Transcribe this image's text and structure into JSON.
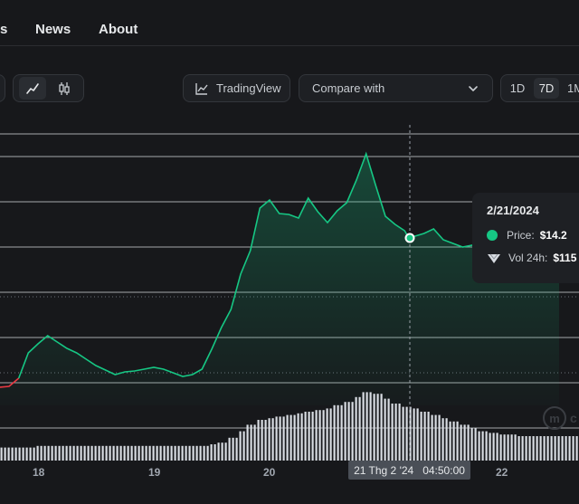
{
  "nav": {
    "items": [
      {
        "label": "s"
      },
      {
        "label": "News"
      },
      {
        "label": "About"
      }
    ]
  },
  "toolbar": {
    "tradingview_label": "TradingView",
    "compare_placeholder": "Compare with",
    "ranges": [
      "1D",
      "7D",
      "1M"
    ],
    "selected_range": "7D",
    "icons": [
      "line-chart-icon",
      "candlestick-icon",
      "trading-view-icon",
      "chevron-down-icon"
    ]
  },
  "tooltip": {
    "date": "2/21/2024",
    "price_label": "Price:",
    "price_value": "$14.2",
    "vol_label": "Vol 24h:",
    "vol_value": "$115"
  },
  "crosshair": {
    "date_label": "21 Thg 2 '24",
    "time_label": "04:50:00"
  },
  "x_axis_labels": [
    "18",
    "19",
    "20",
    "22"
  ],
  "colors": {
    "up": "#16c784",
    "down": "#ea3943",
    "background": "#17181b",
    "volume": "#d9dde3"
  },
  "chart_data": {
    "type": "area",
    "series": [
      {
        "x": [
          "2024-02-17 12:00",
          "2024-02-17 14:00",
          "2024-02-17 16:00",
          "2024-02-17 18:00",
          "2024-02-17 20:00",
          "2024-02-17 22:00",
          "2024-02-18 00:00",
          "2024-02-18 02:00",
          "2024-02-18 04:00",
          "2024-02-18 06:00",
          "2024-02-18 08:00",
          "2024-02-18 10:00",
          "2024-02-18 12:00",
          "2024-02-18 14:00",
          "2024-02-18 16:00",
          "2024-02-18 18:00",
          "2024-02-18 20:00",
          "2024-02-18 22:00",
          "2024-02-19 00:00",
          "2024-02-19 02:00",
          "2024-02-19 04:00",
          "2024-02-19 06:00",
          "2024-02-19 08:00",
          "2024-02-19 10:00",
          "2024-02-19 12:00",
          "2024-02-19 14:00",
          "2024-02-19 16:00",
          "2024-02-19 18:00",
          "2024-02-19 20:00",
          "2024-02-19 22:00",
          "2024-02-20 00:00",
          "2024-02-20 02:00",
          "2024-02-20 04:00",
          "2024-02-20 06:00",
          "2024-02-20 08:00",
          "2024-02-20 10:00",
          "2024-02-20 12:00",
          "2024-02-20 14:00",
          "2024-02-20 16:00",
          "2024-02-20 18:00",
          "2024-02-20 20:00",
          "2024-02-20 22:00",
          "2024-02-21 00:00",
          "2024-02-21 02:00",
          "2024-02-21 04:00",
          "2024-02-21 04:50",
          "2024-02-21 08:00",
          "2024-02-21 10:00",
          "2024-02-21 12:00",
          "2024-02-21 14:00",
          "2024-02-21 16:00",
          "2024-02-21 18:00",
          "2024-02-21 20:00",
          "2024-02-21 22:00",
          "2024-02-22 00:00",
          "2024-02-22 02:00",
          "2024-02-22 04:00",
          "2024-02-22 06:00",
          "2024-02-22 08:00",
          "2024-02-22 10:00",
          "2024-02-22 12:00"
        ],
        "values": [
          10.96,
          10.86,
          10.9,
          10.92,
          11.1,
          11.66,
          11.86,
          12.04,
          11.9,
          11.76,
          11.66,
          11.52,
          11.38,
          11.28,
          11.18,
          11.24,
          11.26,
          11.3,
          11.34,
          11.3,
          11.22,
          11.14,
          11.18,
          11.3,
          11.74,
          12.22,
          12.62,
          13.4,
          13.92,
          14.86,
          15.04,
          14.74,
          14.72,
          14.64,
          15.08,
          14.78,
          14.54,
          14.8,
          14.98,
          15.48,
          16.06,
          15.36,
          14.68,
          14.5,
          14.36,
          14.2,
          14.3,
          14.4,
          14.16,
          14.08,
          14.0,
          14.04,
          13.96,
          14.12,
          13.5,
          13.72,
          13.4,
          13.5,
          13.66,
          13.4,
          13.56
        ]
      }
    ],
    "volume": [
      4,
      4,
      4,
      4,
      4,
      4,
      4.5,
      4.5,
      4.5,
      4.5,
      4.5,
      4.5,
      4.5,
      4.5,
      4.5,
      4.5,
      4.5,
      4.5,
      4.5,
      4.5,
      4.5,
      4.5,
      4.5,
      4.5,
      5,
      5.5,
      7,
      9,
      11,
      12.5,
      13,
      13.5,
      14,
      14.5,
      15,
      15.5,
      16,
      17,
      18,
      19.5,
      21,
      20.5,
      19,
      17.5,
      16.5,
      16,
      15,
      14,
      13,
      12,
      11,
      10,
      9,
      8.5,
      8,
      8,
      7.5,
      7.5,
      7.5,
      7.5,
      7.5
    ],
    "price_lines": [
      16.5,
      16.0,
      15.0,
      14.0,
      13.0,
      12.0,
      11.0,
      10.0
    ],
    "ylim": [
      9.5,
      16.5
    ],
    "grid": true,
    "down_segment_end_index": 4
  }
}
